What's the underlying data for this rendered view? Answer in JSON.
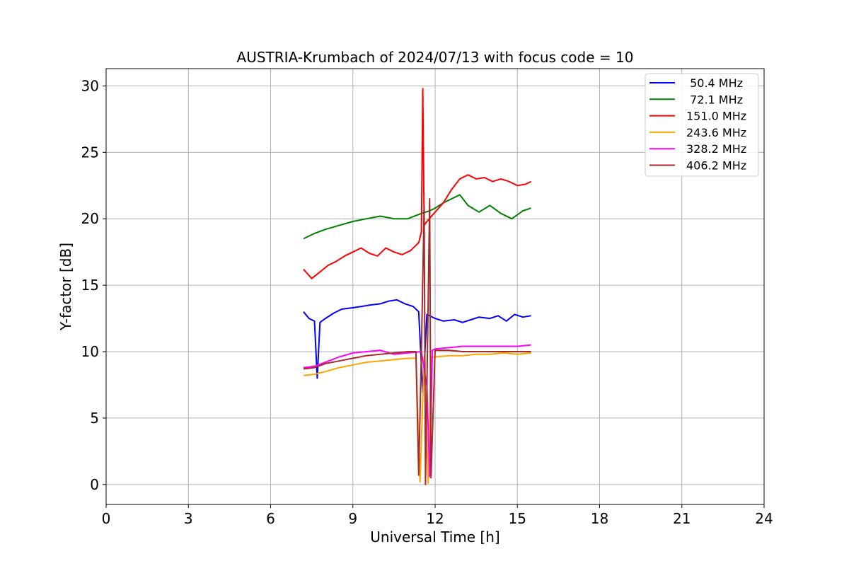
{
  "chart_data": {
    "type": "line",
    "title": "AUSTRIA-Krumbach of 2024/07/13 with focus code = 10",
    "xlabel": "Universal Time [h]",
    "ylabel": "Y-factor [dB]",
    "xlim": [
      0,
      24
    ],
    "ylim": [
      -1.5,
      31.3
    ],
    "xticks": [
      0,
      3,
      6,
      9,
      12,
      15,
      18,
      21,
      24
    ],
    "yticks": [
      0,
      5,
      10,
      15,
      20,
      25,
      30
    ],
    "grid": true,
    "legend_position": "top-right",
    "series": [
      {
        "name": " 50.4 MHz",
        "color": "#0000ff",
        "x": [
          7.2,
          7.4,
          7.6,
          7.7,
          7.8,
          8.0,
          8.3,
          8.6,
          9.0,
          9.3,
          9.6,
          10.0,
          10.3,
          10.6,
          10.9,
          11.2,
          11.4,
          11.55,
          11.7,
          12.0,
          12.3,
          12.7,
          13.0,
          13.3,
          13.6,
          14.0,
          14.3,
          14.6,
          14.9,
          15.2,
          15.5
        ],
        "y": [
          13.0,
          12.5,
          12.3,
          8.0,
          12.2,
          12.5,
          12.9,
          13.2,
          13.3,
          13.4,
          13.5,
          13.6,
          13.8,
          13.9,
          13.6,
          13.4,
          13.0,
          6.9,
          12.8,
          12.5,
          12.3,
          12.4,
          12.2,
          12.4,
          12.6,
          12.5,
          12.7,
          12.3,
          12.8,
          12.6,
          12.7
        ]
      },
      {
        "name": " 72.1 MHz",
        "color": "#008000",
        "x": [
          7.2,
          7.6,
          8.0,
          8.5,
          9.0,
          9.5,
          10.0,
          10.5,
          11.0,
          11.5,
          11.8,
          12.0,
          12.3,
          12.6,
          12.9,
          13.2,
          13.6,
          14.0,
          14.4,
          14.8,
          15.2,
          15.5
        ],
        "y": [
          18.5,
          18.9,
          19.2,
          19.5,
          19.8,
          20.0,
          20.2,
          20.0,
          20.0,
          20.4,
          20.6,
          20.8,
          21.2,
          21.5,
          21.8,
          21.0,
          20.5,
          21.0,
          20.4,
          20.0,
          20.6,
          20.8
        ]
      },
      {
        "name": "151.0 MHz",
        "color": "#ff0000",
        "x": [
          7.2,
          7.5,
          7.8,
          8.1,
          8.4,
          8.7,
          9.0,
          9.3,
          9.6,
          9.9,
          10.2,
          10.5,
          10.8,
          11.1,
          11.4,
          11.5,
          11.55,
          11.6,
          11.7,
          12.0,
          12.3,
          12.6,
          12.9,
          13.2,
          13.5,
          13.8,
          14.1,
          14.4,
          14.7,
          15.0,
          15.3,
          15.5
        ],
        "y": [
          16.2,
          15.5,
          16.0,
          16.5,
          16.8,
          17.2,
          17.5,
          17.8,
          17.4,
          17.2,
          17.8,
          17.5,
          17.3,
          17.6,
          18.2,
          19.0,
          29.8,
          19.5,
          19.8,
          20.5,
          21.2,
          22.2,
          23.0,
          23.3,
          23.0,
          23.1,
          22.8,
          23.0,
          22.8,
          22.5,
          22.6,
          22.8
        ]
      },
      {
        "name": "243.6 MHz",
        "color": "#ffa500",
        "x": [
          7.2,
          7.6,
          8.0,
          8.5,
          9.0,
          9.5,
          10.0,
          10.5,
          11.0,
          11.3,
          11.45,
          11.6,
          11.75,
          11.85,
          12.0,
          12.5,
          13.0,
          13.5,
          14.0,
          14.5,
          15.0,
          15.5
        ],
        "y": [
          8.2,
          8.3,
          8.5,
          8.8,
          9.0,
          9.2,
          9.3,
          9.4,
          9.5,
          9.5,
          0.2,
          9.6,
          0.1,
          9.6,
          9.6,
          9.7,
          9.7,
          9.8,
          9.8,
          9.9,
          9.8,
          9.9
        ]
      },
      {
        "name": "328.2 MHz",
        "color": "#ff00ff",
        "x": [
          7.2,
          7.6,
          8.0,
          8.5,
          9.0,
          9.5,
          10.0,
          10.5,
          11.0,
          11.5,
          11.7,
          11.8,
          11.9,
          12.0,
          12.5,
          13.0,
          13.5,
          14.0,
          14.5,
          15.0,
          15.5
        ],
        "y": [
          8.8,
          8.9,
          9.2,
          9.6,
          9.9,
          10.0,
          10.1,
          9.8,
          9.9,
          10.0,
          7.4,
          0.6,
          10.1,
          10.2,
          10.3,
          10.4,
          10.4,
          10.4,
          10.4,
          10.4,
          10.5
        ]
      },
      {
        "name": "406.2 MHz",
        "color": "#a52a2a",
        "x": [
          7.2,
          7.6,
          8.0,
          8.5,
          9.0,
          9.5,
          10.0,
          10.5,
          11.0,
          11.3,
          11.4,
          11.5,
          11.6,
          11.65,
          11.8,
          11.85,
          12.0,
          12.5,
          13.0,
          13.5,
          14.0,
          14.5,
          15.0,
          15.5
        ],
        "y": [
          8.7,
          8.8,
          9.1,
          9.3,
          9.5,
          9.7,
          9.8,
          9.9,
          10.0,
          10.0,
          0.7,
          10.0,
          21.0,
          0.0,
          21.5,
          0.5,
          10.1,
          10.1,
          10.0,
          10.0,
          10.0,
          10.0,
          10.0,
          10.0
        ]
      }
    ]
  }
}
